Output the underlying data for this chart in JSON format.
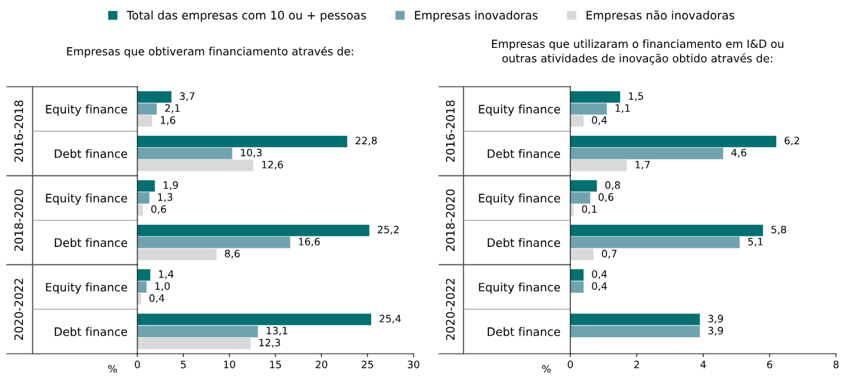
{
  "chart_data": [
    {
      "type": "bar",
      "orientation": "horizontal",
      "title": "Empresas que obtiveram financiamento através de:",
      "xlabel": "%",
      "categories": [
        "Equity finance",
        "Debt finance",
        "Equity finance",
        "Debt finance",
        "Equity finance",
        "Debt finance"
      ],
      "annotations": [
        "2016-2018",
        "2018-2020",
        "2020-2022"
      ],
      "xlim": [
        0,
        30
      ],
      "xticks": [
        0,
        5,
        10,
        15,
        20,
        25,
        30
      ],
      "grid": false,
      "legend": "top",
      "series": [
        {
          "name": "Total das empresas com 10 ou + pessoas",
          "color": "#007070",
          "values": [
            3.7,
            22.8,
            1.9,
            25.2,
            1.4,
            25.4
          ],
          "value_labels": [
            "3,7",
            "22,8",
            "1,9",
            "25,2",
            "1,4",
            "25,4"
          ]
        },
        {
          "name": "Empresas inovadoras",
          "color": "#6fa3b0",
          "values": [
            2.1,
            10.3,
            1.3,
            16.6,
            1.0,
            13.1
          ],
          "value_labels": [
            "2,1",
            "10,3",
            "1,3",
            "16,6",
            "1,0",
            "13,1"
          ]
        },
        {
          "name": "Empresas não inovadoras",
          "color": "#d9d9d9",
          "values": [
            1.6,
            12.6,
            0.6,
            8.6,
            0.4,
            12.3
          ],
          "value_labels": [
            "1,6",
            "12,6",
            "0,6",
            "8,6",
            "0,4",
            "12,3"
          ]
        }
      ]
    },
    {
      "type": "bar",
      "orientation": "horizontal",
      "title": "Empresas que utilizaram o financiamento em I&D ou\noutras atividades de inovação obtido através de:",
      "xlabel": "%",
      "categories": [
        "Equity finance",
        "Debt finance",
        "Equity finance",
        "Debt finance",
        "Equity finance",
        "Debt finance"
      ],
      "annotations": [
        "2016-2018",
        "2018-2020",
        "2020-2022"
      ],
      "xlim": [
        0,
        8
      ],
      "xticks": [
        0,
        2,
        4,
        6,
        8
      ],
      "grid": false,
      "series": [
        {
          "color": "#007070",
          "values": [
            1.5,
            6.2,
            0.8,
            5.8,
            0.4,
            3.9
          ],
          "value_labels": [
            "1,5",
            "6,2",
            "0,8",
            "5,8",
            "0,4",
            "3,9"
          ]
        },
        {
          "color": "#6fa3b0",
          "values": [
            1.1,
            4.6,
            0.6,
            5.1,
            0.4,
            3.9
          ],
          "value_labels": [
            "1,1",
            "4,6",
            "0,6",
            "5,1",
            "0,4",
            "3,9"
          ]
        },
        {
          "color": "#d9d9d9",
          "values": [
            0.4,
            1.7,
            0.1,
            0.7,
            null,
            null
          ],
          "value_labels": [
            "0,4",
            "1,7",
            "0,1",
            "0,7",
            null,
            null
          ]
        }
      ]
    }
  ]
}
